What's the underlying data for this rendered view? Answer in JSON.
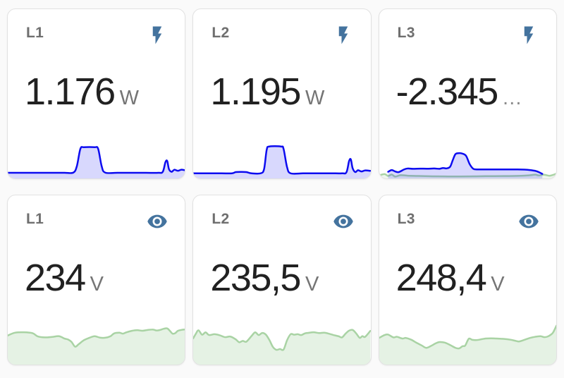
{
  "colors": {
    "page_background": "#fafafa",
    "card_background": "#ffffff",
    "card_border": "#e2e2e2",
    "title_gray": "#6f6f6f",
    "value_dark": "#212121",
    "unit_gray": "#757575",
    "icon_blue": "#44739e",
    "power_line_blue": "#0d0cf0",
    "power_fill_lavender": "rgba(13,12,240,0.16)",
    "voltage_line_green": "#a9d3a4",
    "voltage_fill_green": "rgba(169,211,164,0.30)"
  },
  "cards": [
    {
      "title": "L1",
      "icon": "flash-icon",
      "value": "1.176",
      "unit": "W",
      "overflow": ""
    },
    {
      "title": "L2",
      "icon": "flash-icon",
      "value": "1.195",
      "unit": "W",
      "overflow": ""
    },
    {
      "title": "L3",
      "icon": "flash-icon",
      "value": "-2.345",
      "unit": "",
      "overflow": "…"
    },
    {
      "title": "L1",
      "icon": "eye-icon",
      "value": "234",
      "unit": "V",
      "overflow": ""
    },
    {
      "title": "L2",
      "icon": "eye-icon",
      "value": "235,5",
      "unit": "V",
      "overflow": ""
    },
    {
      "title": "L3",
      "icon": "eye-icon",
      "value": "248,4",
      "unit": "V",
      "overflow": ""
    }
  ],
  "chart_data": [
    {
      "type": "area",
      "name": "power-l1-sparkline",
      "axes": "hidden",
      "normalized": true,
      "series": [
        {
          "name": "power",
          "line": "#0d0cf0",
          "fill": "rgba(13,12,240,0.16)",
          "points": [
            [
              0,
              34.5
            ],
            [
              8,
              34.5
            ],
            [
              16,
              34.5
            ],
            [
              24,
              34.5
            ],
            [
              32,
              34.5
            ],
            [
              37,
              34.3
            ],
            [
              39,
              28
            ],
            [
              41,
              11
            ],
            [
              43,
              9.5
            ],
            [
              49,
              9.5
            ],
            [
              51,
              11
            ],
            [
              53,
              28
            ],
            [
              55,
              34.3
            ],
            [
              62,
              34.5
            ],
            [
              70,
              34.5
            ],
            [
              78,
              34.5
            ],
            [
              85,
              34.5
            ],
            [
              87.5,
              33.5
            ],
            [
              89,
              24
            ],
            [
              90,
              23
            ],
            [
              91,
              31
            ],
            [
              92.5,
              33.5
            ],
            [
              94,
              31.5
            ],
            [
              96,
              32.5
            ],
            [
              98,
              31.5
            ],
            [
              100,
              32
            ]
          ]
        }
      ]
    },
    {
      "type": "area",
      "name": "power-l2-sparkline",
      "axes": "hidden",
      "normalized": true,
      "series": [
        {
          "name": "power",
          "line": "#0d0cf0",
          "fill": "rgba(13,12,240,0.16)",
          "points": [
            [
              0,
              35
            ],
            [
              8,
              35
            ],
            [
              16,
              35
            ],
            [
              22,
              35
            ],
            [
              24,
              33.8
            ],
            [
              27,
              33.6
            ],
            [
              30,
              33.8
            ],
            [
              33,
              35
            ],
            [
              38,
              35
            ],
            [
              40,
              31
            ],
            [
              41.5,
              12
            ],
            [
              43,
              8.8
            ],
            [
              49.5,
              8.8
            ],
            [
              51,
              11
            ],
            [
              53,
              29
            ],
            [
              55,
              35
            ],
            [
              62,
              35
            ],
            [
              70,
              35
            ],
            [
              78,
              35
            ],
            [
              84,
              35
            ],
            [
              86.5,
              34
            ],
            [
              88,
              23
            ],
            [
              89,
              21.5
            ],
            [
              90,
              30
            ],
            [
              91.5,
              33.8
            ],
            [
              93,
              32
            ],
            [
              95,
              33.2
            ],
            [
              97,
              32.2
            ],
            [
              100,
              32.6
            ]
          ]
        }
      ]
    },
    {
      "type": "area",
      "name": "power-l3-sparkline",
      "axes": "hidden",
      "normalized": true,
      "series": [
        {
          "name": "voltage-trace",
          "line": "#a9d3a4",
          "fill": "rgba(169,211,164,0.18)",
          "points": [
            [
              0,
              37
            ],
            [
              3,
              35.8
            ],
            [
              5,
              37.6
            ],
            [
              7,
              36.2
            ],
            [
              9,
              38.2
            ],
            [
              12,
              36.8
            ],
            [
              16,
              37.3
            ],
            [
              22,
              37.6
            ],
            [
              30,
              37.9
            ],
            [
              40,
              38.1
            ],
            [
              50,
              38
            ],
            [
              60,
              37.8
            ],
            [
              70,
              37.7
            ],
            [
              80,
              37.4
            ],
            [
              85,
              36.9
            ],
            [
              88,
              36.3
            ],
            [
              90,
              37.1
            ],
            [
              93,
              36.4
            ],
            [
              96,
              37.4
            ],
            [
              98,
              36.6
            ],
            [
              100,
              35.3
            ]
          ]
        },
        {
          "name": "power",
          "line": "#0d0cf0",
          "fill": "rgba(13,12,240,0.16)",
          "points": [
            [
              5,
              33.5
            ],
            [
              7,
              31.8
            ],
            [
              9,
              33.2
            ],
            [
              11,
              33.8
            ],
            [
              14,
              31.2
            ],
            [
              16,
              30.3
            ],
            [
              19,
              30.6
            ],
            [
              23,
              30.4
            ],
            [
              27,
              30.5
            ],
            [
              31,
              30.3
            ],
            [
              34,
              30.6
            ],
            [
              36,
              29.8
            ],
            [
              38,
              30.2
            ],
            [
              40,
              28.5
            ],
            [
              41.5,
              22
            ],
            [
              43,
              16.2
            ],
            [
              45,
              15.3
            ],
            [
              47,
              15.8
            ],
            [
              49,
              18
            ],
            [
              51,
              26
            ],
            [
              53,
              30.5
            ],
            [
              55,
              31.2
            ],
            [
              60,
              31.2
            ],
            [
              66,
              31.2
            ],
            [
              72,
              31.2
            ],
            [
              78,
              31.2
            ],
            [
              82,
              31.4
            ],
            [
              85,
              31.8
            ],
            [
              88,
              32.6
            ],
            [
              90,
              33.8
            ],
            [
              92,
              35.6
            ]
          ]
        }
      ]
    },
    {
      "type": "area",
      "name": "voltage-l1-sparkline",
      "axes": "hidden",
      "normalized": true,
      "series": [
        {
          "name": "voltage",
          "line": "#a9d3a4",
          "fill": "rgba(169,211,164,0.30)",
          "points": [
            [
              0,
              15
            ],
            [
              4,
              12.6
            ],
            [
              9,
              12.2
            ],
            [
              14,
              13
            ],
            [
              17,
              15.8
            ],
            [
              21,
              16.6
            ],
            [
              25,
              16.2
            ],
            [
              29,
              15.6
            ],
            [
              32,
              17.6
            ],
            [
              34,
              18.4
            ],
            [
              36,
              20.5
            ],
            [
              38,
              24.6
            ],
            [
              40,
              22.5
            ],
            [
              43,
              19
            ],
            [
              46,
              17
            ],
            [
              49,
              15.6
            ],
            [
              52,
              16.8
            ],
            [
              55,
              16.9
            ],
            [
              58,
              15.6
            ],
            [
              60,
              13.2
            ],
            [
              63,
              12.6
            ],
            [
              65,
              13.4
            ],
            [
              67,
              12.2
            ],
            [
              70,
              11
            ],
            [
              73,
              10.4
            ],
            [
              76,
              10.9
            ],
            [
              79,
              10.2
            ],
            [
              82,
              9.9
            ],
            [
              84,
              10.7
            ],
            [
              86,
              10.2
            ],
            [
              88,
              9.2
            ],
            [
              90,
              8.9
            ],
            [
              91.5,
              11
            ],
            [
              93,
              13.4
            ],
            [
              94.5,
              13
            ],
            [
              96,
              11
            ],
            [
              98,
              10.2
            ],
            [
              100,
              9.8
            ]
          ]
        }
      ]
    },
    {
      "type": "area",
      "name": "voltage-l2-sparkline",
      "axes": "hidden",
      "normalized": true,
      "series": [
        {
          "name": "voltage",
          "line": "#a9d3a4",
          "fill": "rgba(169,211,164,0.30)",
          "points": [
            [
              0,
              17.5
            ],
            [
              1.5,
              13.5
            ],
            [
              3,
              10.5
            ],
            [
              5,
              14.3
            ],
            [
              7,
              12.3
            ],
            [
              9,
              14.6
            ],
            [
              12,
              13.9
            ],
            [
              15,
              14.8
            ],
            [
              18,
              16.4
            ],
            [
              21,
              15.9
            ],
            [
              24,
              18.3
            ],
            [
              26,
              20.8
            ],
            [
              28,
              19.6
            ],
            [
              30,
              20.3
            ],
            [
              33,
              15.3
            ],
            [
              35,
              12.3
            ],
            [
              37,
              14.6
            ],
            [
              39,
              12.8
            ],
            [
              41,
              14.2
            ],
            [
              43,
              18.8
            ],
            [
              45,
              24.8
            ],
            [
              47,
              27.3
            ],
            [
              49,
              26.6
            ],
            [
              51,
              27.1
            ],
            [
              53,
              19
            ],
            [
              55,
              13.9
            ],
            [
              57,
              14.3
            ],
            [
              59,
              13.9
            ],
            [
              61,
              14.6
            ],
            [
              63,
              13.2
            ],
            [
              65,
              12.7
            ],
            [
              68,
              12.2
            ],
            [
              71,
              12.9
            ],
            [
              74,
              12.6
            ],
            [
              77,
              13.6
            ],
            [
              79,
              14.5
            ],
            [
              82,
              15.6
            ],
            [
              84,
              16.6
            ],
            [
              86,
              13.4
            ],
            [
              88,
              10.8
            ],
            [
              90,
              10.2
            ],
            [
              92,
              13.2
            ],
            [
              94,
              17
            ],
            [
              95.5,
              15.5
            ],
            [
              97,
              16.2
            ],
            [
              100,
              11
            ]
          ]
        }
      ]
    },
    {
      "type": "area",
      "name": "voltage-l3-sparkline",
      "axes": "hidden",
      "normalized": true,
      "series": [
        {
          "name": "voltage",
          "line": "#a9d3a4",
          "fill": "rgba(169,211,164,0.30)",
          "points": [
            [
              0,
              17
            ],
            [
              3,
              14.6
            ],
            [
              5,
              14.2
            ],
            [
              8,
              16.6
            ],
            [
              10,
              16.1
            ],
            [
              13,
              17.6
            ],
            [
              15,
              17.1
            ],
            [
              18,
              18.6
            ],
            [
              21,
              21.2
            ],
            [
              24,
              23.6
            ],
            [
              26.5,
              25.6
            ],
            [
              29,
              24.1
            ],
            [
              32,
              21.6
            ],
            [
              34,
              20.6
            ],
            [
              37,
              21.1
            ],
            [
              40,
              23.2
            ],
            [
              43,
              25.6
            ],
            [
              45,
              26.1
            ],
            [
              47,
              24.2
            ],
            [
              48.5,
              23.6
            ],
            [
              50.5,
              17.8
            ],
            [
              52.5,
              18.7
            ],
            [
              55,
              18.9
            ],
            [
              58,
              18.1
            ],
            [
              60,
              17.6
            ],
            [
              63,
              17.4
            ],
            [
              66,
              17.6
            ],
            [
              70,
              17.9
            ],
            [
              74,
              18.6
            ],
            [
              77,
              19.6
            ],
            [
              79,
              20.1
            ],
            [
              82,
              18.7
            ],
            [
              85,
              17.1
            ],
            [
              88,
              16.1
            ],
            [
              91,
              15.6
            ],
            [
              93,
              16.4
            ],
            [
              95,
              15.9
            ],
            [
              97,
              14.1
            ],
            [
              98.2,
              12.1
            ],
            [
              100,
              6.5
            ]
          ]
        }
      ]
    }
  ]
}
